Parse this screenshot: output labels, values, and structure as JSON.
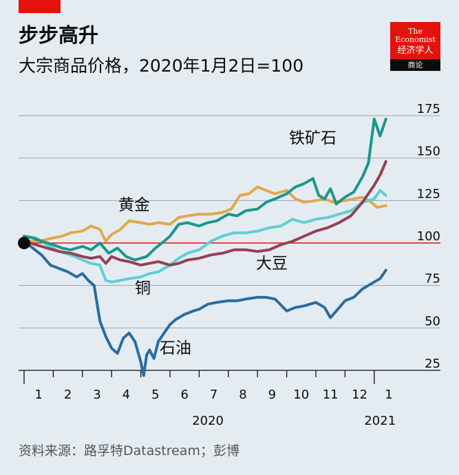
{
  "header": {
    "title": "步步高升",
    "subtitle": "大宗商品价格，2020年1月2日=100"
  },
  "logo": {
    "line1": "The",
    "line2": "Economist",
    "cn": "经济学人",
    "tag": "商论"
  },
  "source": "资料来源：路孚特Datastream；彭博",
  "colors": {
    "iron_ore": "#1c968c",
    "gold": "#e2a84a",
    "copper": "#5ecfd4",
    "soybeans": "#963f53",
    "oil": "#2a6c9e",
    "baseline": "#e3120b",
    "grid": "#9aa6b2"
  },
  "chart_data": {
    "type": "line",
    "title": "步步高升",
    "subtitle": "大宗商品价格，2020年1月2日=100",
    "ylim": [
      25,
      175
    ],
    "yticks": [
      "25",
      "50",
      "75",
      "100",
      "125",
      "150",
      "175"
    ],
    "baseline": 100,
    "x_unit": "month",
    "xlim": [
      0,
      12.5
    ],
    "xtick_labels": [
      "1",
      "2",
      "3",
      "4",
      "5",
      "6",
      "7",
      "8",
      "9",
      "10",
      "11",
      "12",
      "1"
    ],
    "year_labels": [
      "2020",
      "2021"
    ],
    "grid": true,
    "series": [
      {
        "key": "iron_ore",
        "name": "铁矿石",
        "x": [
          0,
          0.3,
          0.6,
          1,
          1.3,
          1.6,
          2,
          2.3,
          2.6,
          2.9,
          3.2,
          3.5,
          3.8,
          4.2,
          4.5,
          4.8,
          5,
          5.3,
          5.6,
          6,
          6.3,
          6.6,
          7,
          7.3,
          7.6,
          8,
          8.3,
          8.6,
          9,
          9.3,
          9.6,
          9.9,
          10.1,
          10.3,
          10.5,
          10.7,
          11,
          11.3,
          11.6,
          11.8,
          12,
          12.2,
          12.4
        ],
        "y": [
          104,
          103,
          101,
          99,
          97,
          96,
          98,
          96,
          100,
          94,
          97,
          92,
          90,
          92,
          97,
          101,
          104,
          111,
          112,
          110,
          112,
          113,
          117,
          116,
          119,
          120,
          124,
          126,
          129,
          133,
          135,
          138,
          128,
          126,
          132,
          123,
          127,
          130,
          139,
          147,
          173,
          163,
          173
        ]
      },
      {
        "key": "gold",
        "name": "黄金",
        "x": [
          0,
          0.5,
          1,
          1.3,
          1.6,
          2,
          2.3,
          2.6,
          2.8,
          3,
          3.3,
          3.6,
          4,
          4.3,
          4.6,
          5,
          5.3,
          5.6,
          6,
          6.4,
          6.8,
          7.1,
          7.4,
          7.7,
          8,
          8.3,
          8.6,
          9,
          9.3,
          9.6,
          10,
          10.3,
          10.6,
          11,
          11.3,
          11.6,
          11.9,
          12.1,
          12.4
        ],
        "y": [
          101,
          101,
          103,
          104,
          106,
          107,
          110,
          108,
          101,
          105,
          108,
          113,
          112,
          111,
          112,
          111,
          115,
          116,
          117,
          117,
          118,
          120,
          128,
          129,
          133,
          131,
          129,
          131,
          126,
          124,
          125,
          126,
          124,
          125,
          126,
          127,
          124,
          121,
          122
        ]
      },
      {
        "key": "copper",
        "name": "铜",
        "x": [
          0,
          0.4,
          0.8,
          1.2,
          1.6,
          2,
          2.3,
          2.6,
          2.8,
          3,
          3.3,
          3.6,
          4,
          4.3,
          4.6,
          5,
          5.3,
          5.6,
          6,
          6.4,
          6.8,
          7.2,
          7.6,
          8,
          8.4,
          8.8,
          9.2,
          9.6,
          10,
          10.4,
          10.8,
          11.2,
          11.6,
          12,
          12.2,
          12.4
        ],
        "y": [
          104,
          103,
          99,
          95,
          93,
          90,
          88,
          87,
          78,
          77,
          78,
          79,
          80,
          82,
          83,
          87,
          91,
          94,
          96,
          101,
          104,
          106,
          106,
          107,
          109,
          110,
          114,
          112,
          114,
          115,
          117,
          119,
          124,
          126,
          131,
          128
        ]
      },
      {
        "key": "soybeans",
        "name": "大豆",
        "x": [
          0,
          0.4,
          0.8,
          1.2,
          1.6,
          2,
          2.3,
          2.6,
          2.8,
          3,
          3.3,
          3.6,
          4,
          4.3,
          4.6,
          5,
          5.3,
          5.6,
          6,
          6.4,
          6.8,
          7.2,
          7.6,
          8,
          8.4,
          8.8,
          9.2,
          9.6,
          10,
          10.4,
          10.8,
          11.2,
          11.6,
          12,
          12.2,
          12.4
        ],
        "y": [
          101,
          99,
          97,
          95,
          94,
          92,
          91,
          92,
          88,
          92,
          90,
          89,
          87,
          88,
          89,
          87,
          88,
          90,
          91,
          93,
          94,
          96,
          96,
          95,
          96,
          99,
          101,
          104,
          107,
          109,
          112,
          116,
          124,
          134,
          140,
          148
        ]
      },
      {
        "key": "oil",
        "name": "石油",
        "x": [
          0,
          0.3,
          0.6,
          0.9,
          1.2,
          1.5,
          1.8,
          2,
          2.2,
          2.4,
          2.6,
          2.8,
          3,
          3.2,
          3.4,
          3.6,
          3.8,
          4,
          4.1,
          4.2,
          4.3,
          4.45,
          4.6,
          4.8,
          5,
          5.2,
          5.5,
          5.8,
          6,
          6.3,
          6.6,
          7,
          7.3,
          7.6,
          8,
          8.3,
          8.6,
          9,
          9.3,
          9.6,
          10,
          10.3,
          10.5,
          10.7,
          11,
          11.3,
          11.6,
          12,
          12.2,
          12.4
        ],
        "y": [
          101,
          97,
          93,
          87,
          85,
          83,
          80,
          82,
          78,
          75,
          54,
          45,
          38,
          35,
          44,
          47,
          42,
          30,
          22,
          34,
          37,
          32,
          42,
          47,
          52,
          55,
          58,
          60,
          61,
          64,
          65,
          66,
          66,
          67,
          68,
          68,
          67,
          60,
          62,
          63,
          65,
          62,
          56,
          60,
          66,
          68,
          73,
          77,
          79,
          84
        ]
      }
    ],
    "annotations": [
      {
        "series": "iron_ore",
        "text": "铁矿石"
      },
      {
        "series": "gold",
        "text": "黄金"
      },
      {
        "series": "copper",
        "text": "铜"
      },
      {
        "series": "soybeans",
        "text": "大豆"
      },
      {
        "series": "oil",
        "text": "石油"
      }
    ]
  }
}
